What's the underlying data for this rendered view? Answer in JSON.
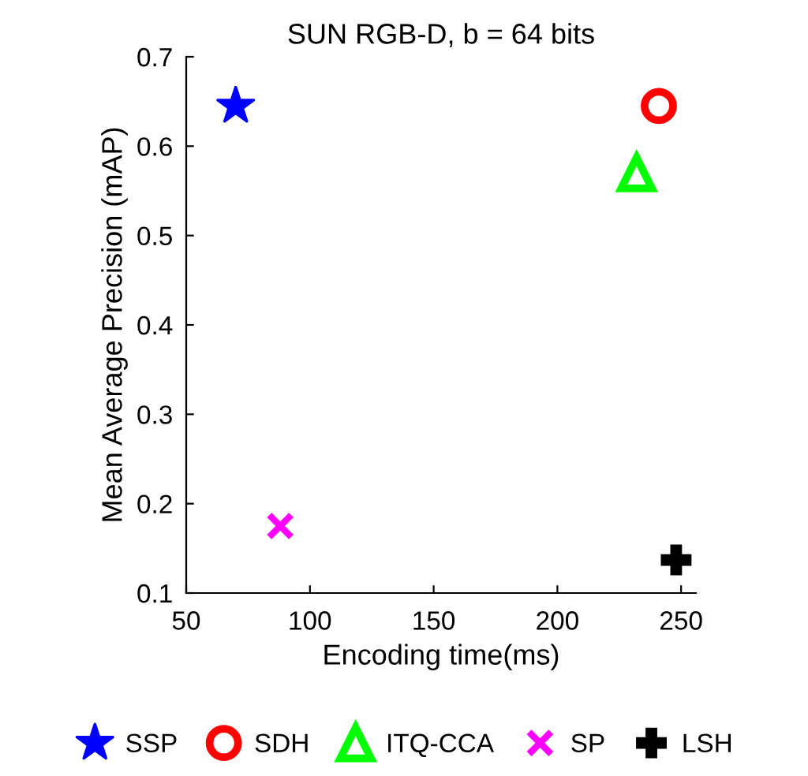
{
  "chart_data": {
    "type": "scatter",
    "title": "SUN RGB-D, b = 64 bits",
    "xlabel": "Encoding time(ms)",
    "ylabel": "Mean Average Precision (mAP)",
    "xlim": [
      50,
      256
    ],
    "xticks": [
      50,
      100,
      150,
      200,
      250
    ],
    "ylim": [
      0.1,
      0.7
    ],
    "yticks": [
      0.1,
      0.2,
      0.3,
      0.4,
      0.5,
      0.6,
      0.7
    ],
    "grid": false,
    "legend": "bottom",
    "series": [
      {
        "name": "SSP",
        "color": "#0000ff",
        "marker": "star",
        "x": [
          70
        ],
        "values": [
          0.645
        ]
      },
      {
        "name": "SDH",
        "color": "#ff0000",
        "marker": "circle",
        "x": [
          241
        ],
        "values": [
          0.645
        ]
      },
      {
        "name": "ITQ-CCA",
        "color": "#00ff00",
        "marker": "triangle",
        "x": [
          232
        ],
        "values": [
          0.57
        ]
      },
      {
        "name": "SP",
        "color": "#ff00ff",
        "marker": "cross",
        "x": [
          88
        ],
        "values": [
          0.175
        ]
      },
      {
        "name": "LSH",
        "color": "#000000",
        "marker": "plus",
        "x": [
          248
        ],
        "values": [
          0.137
        ]
      }
    ]
  }
}
